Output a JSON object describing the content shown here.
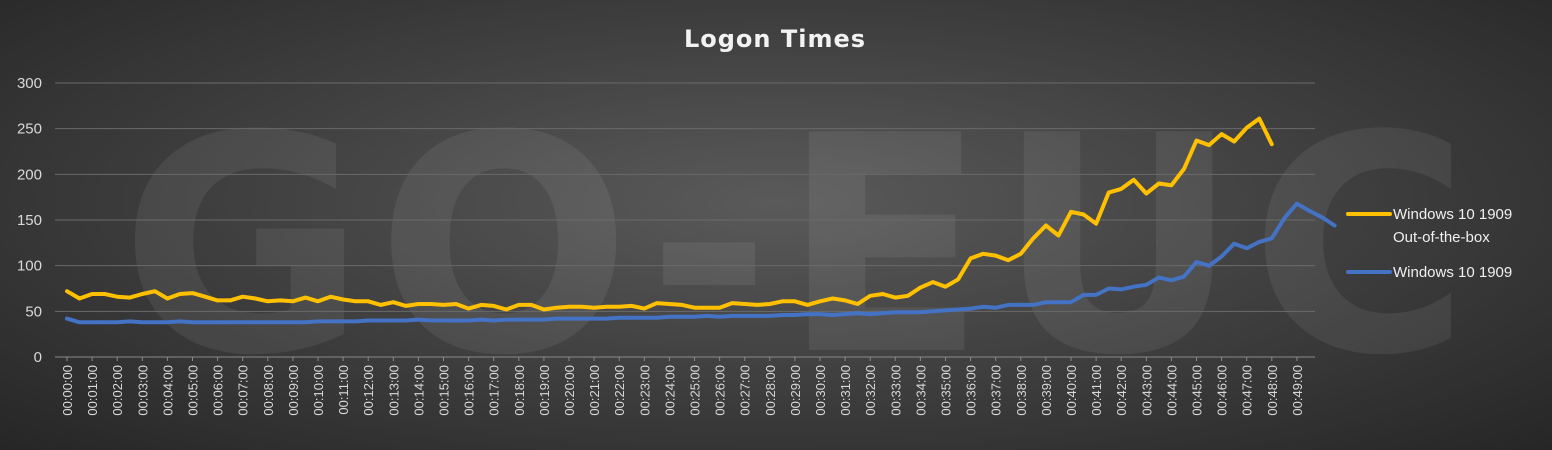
{
  "watermark": "GO-EUC",
  "chart_data": {
    "type": "line",
    "title": "Logon Times",
    "xlabel": "",
    "ylabel": "",
    "ylim": [
      0,
      300
    ],
    "yticks": [
      0,
      50,
      100,
      150,
      200,
      250,
      300
    ],
    "grid": true,
    "legend_position": "right",
    "x_tick_labels": [
      "00:00:00",
      "00:01:00",
      "00:02:00",
      "00:03:00",
      "00:04:00",
      "00:05:00",
      "00:06:00",
      "00:07:00",
      "00:08:00",
      "00:09:00",
      "00:10:00",
      "00:11:00",
      "00:12:00",
      "00:13:00",
      "00:14:00",
      "00:15:00",
      "00:16:00",
      "00:17:00",
      "00:18:00",
      "00:19:00",
      "00:20:00",
      "00:21:00",
      "00:22:00",
      "00:23:00",
      "00:24:00",
      "00:25:00",
      "00:26:00",
      "00:27:00",
      "00:28:00",
      "00:29:00",
      "00:30:00",
      "00:31:00",
      "00:32:00",
      "00:33:00",
      "00:34:00",
      "00:35:00",
      "00:36:00",
      "00:37:00",
      "00:38:00",
      "00:39:00",
      "00:40:00",
      "00:41:00",
      "00:42:00",
      "00:43:00",
      "00:44:00",
      "00:45:00",
      "00:46:00",
      "00:47:00",
      "00:48:00",
      "00:49:00"
    ],
    "points_per_minute": 2,
    "series": [
      {
        "name": "Windows 10 1909 Out-of-the-box",
        "legend_lines": [
          "Windows 10 1909",
          "Out-of-the-box"
        ],
        "color": "#ffc000",
        "values": [
          72,
          64,
          69,
          69,
          66,
          65,
          69,
          72,
          64,
          69,
          70,
          66,
          62,
          62,
          66,
          64,
          61,
          62,
          61,
          65,
          61,
          66,
          63,
          61,
          61,
          57,
          60,
          56,
          58,
          58,
          57,
          58,
          53,
          57,
          56,
          52,
          57,
          57,
          52,
          54,
          55,
          55,
          54,
          55,
          55,
          56,
          53,
          59,
          58,
          57,
          54,
          54,
          54,
          59,
          58,
          57,
          58,
          61,
          61,
          57,
          61,
          64,
          62,
          58,
          67,
          69,
          65,
          67,
          76,
          82,
          77,
          85,
          108,
          113,
          111,
          106,
          113,
          130,
          144,
          133,
          159,
          156,
          146,
          180,
          184,
          194,
          179,
          190,
          188,
          206,
          237,
          232,
          244,
          236,
          251,
          261,
          233
        ]
      },
      {
        "name": "Windows 10 1909",
        "legend_lines": [
          "Windows 10 1909"
        ],
        "color": "#4472c4",
        "values": [
          42,
          38,
          38,
          38,
          38,
          39,
          38,
          38,
          38,
          39,
          38,
          38,
          38,
          38,
          38,
          38,
          38,
          38,
          38,
          38,
          39,
          39,
          39,
          39,
          40,
          40,
          40,
          40,
          41,
          40,
          40,
          40,
          40,
          41,
          40,
          41,
          41,
          41,
          41,
          42,
          42,
          42,
          42,
          42,
          43,
          43,
          43,
          43,
          44,
          44,
          44,
          45,
          44,
          45,
          45,
          45,
          45,
          46,
          46,
          47,
          47,
          46,
          47,
          48,
          47,
          48,
          49,
          49,
          49,
          50,
          51,
          52,
          53,
          55,
          54,
          57,
          57,
          57,
          60,
          60,
          60,
          68,
          68,
          75,
          74,
          77,
          79,
          87,
          84,
          88,
          104,
          100,
          110,
          124,
          119,
          126,
          130,
          152,
          168,
          160,
          153,
          144
        ]
      }
    ]
  }
}
